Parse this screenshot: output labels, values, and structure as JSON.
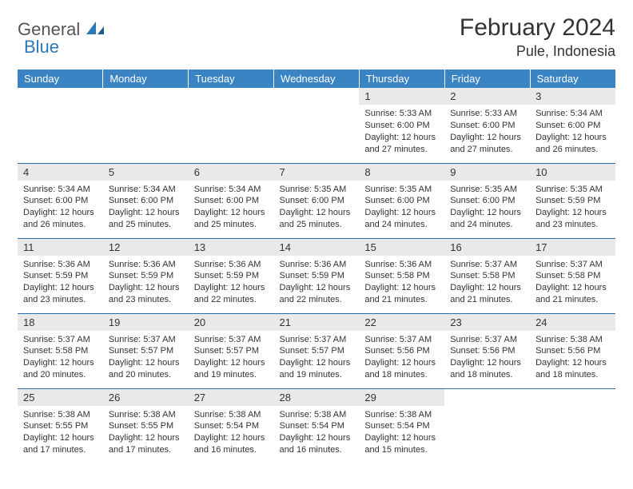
{
  "logo": {
    "part1": "General",
    "part2": "Blue"
  },
  "title": "February 2024",
  "location": "Pule, Indonesia",
  "colors": {
    "header_bg": "#3b84c4",
    "header_text": "#ffffff",
    "daynum_bg": "#e9e9e9",
    "row_border": "#2a6da8",
    "logo_gray": "#555555",
    "logo_blue": "#2a7ab9",
    "body_text": "#333333",
    "page_bg": "#ffffff"
  },
  "typography": {
    "title_fontsize": 30,
    "location_fontsize": 18,
    "header_fontsize": 13,
    "daynum_fontsize": 13,
    "cell_fontsize": 11
  },
  "columns": [
    "Sunday",
    "Monday",
    "Tuesday",
    "Wednesday",
    "Thursday",
    "Friday",
    "Saturday"
  ],
  "weeks": [
    [
      null,
      null,
      null,
      null,
      {
        "n": "1",
        "sunrise": "Sunrise: 5:33 AM",
        "sunset": "Sunset: 6:00 PM",
        "daylight": "Daylight: 12 hours and 27 minutes."
      },
      {
        "n": "2",
        "sunrise": "Sunrise: 5:33 AM",
        "sunset": "Sunset: 6:00 PM",
        "daylight": "Daylight: 12 hours and 27 minutes."
      },
      {
        "n": "3",
        "sunrise": "Sunrise: 5:34 AM",
        "sunset": "Sunset: 6:00 PM",
        "daylight": "Daylight: 12 hours and 26 minutes."
      }
    ],
    [
      {
        "n": "4",
        "sunrise": "Sunrise: 5:34 AM",
        "sunset": "Sunset: 6:00 PM",
        "daylight": "Daylight: 12 hours and 26 minutes."
      },
      {
        "n": "5",
        "sunrise": "Sunrise: 5:34 AM",
        "sunset": "Sunset: 6:00 PM",
        "daylight": "Daylight: 12 hours and 25 minutes."
      },
      {
        "n": "6",
        "sunrise": "Sunrise: 5:34 AM",
        "sunset": "Sunset: 6:00 PM",
        "daylight": "Daylight: 12 hours and 25 minutes."
      },
      {
        "n": "7",
        "sunrise": "Sunrise: 5:35 AM",
        "sunset": "Sunset: 6:00 PM",
        "daylight": "Daylight: 12 hours and 25 minutes."
      },
      {
        "n": "8",
        "sunrise": "Sunrise: 5:35 AM",
        "sunset": "Sunset: 6:00 PM",
        "daylight": "Daylight: 12 hours and 24 minutes."
      },
      {
        "n": "9",
        "sunrise": "Sunrise: 5:35 AM",
        "sunset": "Sunset: 6:00 PM",
        "daylight": "Daylight: 12 hours and 24 minutes."
      },
      {
        "n": "10",
        "sunrise": "Sunrise: 5:35 AM",
        "sunset": "Sunset: 5:59 PM",
        "daylight": "Daylight: 12 hours and 23 minutes."
      }
    ],
    [
      {
        "n": "11",
        "sunrise": "Sunrise: 5:36 AM",
        "sunset": "Sunset: 5:59 PM",
        "daylight": "Daylight: 12 hours and 23 minutes."
      },
      {
        "n": "12",
        "sunrise": "Sunrise: 5:36 AM",
        "sunset": "Sunset: 5:59 PM",
        "daylight": "Daylight: 12 hours and 23 minutes."
      },
      {
        "n": "13",
        "sunrise": "Sunrise: 5:36 AM",
        "sunset": "Sunset: 5:59 PM",
        "daylight": "Daylight: 12 hours and 22 minutes."
      },
      {
        "n": "14",
        "sunrise": "Sunrise: 5:36 AM",
        "sunset": "Sunset: 5:59 PM",
        "daylight": "Daylight: 12 hours and 22 minutes."
      },
      {
        "n": "15",
        "sunrise": "Sunrise: 5:36 AM",
        "sunset": "Sunset: 5:58 PM",
        "daylight": "Daylight: 12 hours and 21 minutes."
      },
      {
        "n": "16",
        "sunrise": "Sunrise: 5:37 AM",
        "sunset": "Sunset: 5:58 PM",
        "daylight": "Daylight: 12 hours and 21 minutes."
      },
      {
        "n": "17",
        "sunrise": "Sunrise: 5:37 AM",
        "sunset": "Sunset: 5:58 PM",
        "daylight": "Daylight: 12 hours and 21 minutes."
      }
    ],
    [
      {
        "n": "18",
        "sunrise": "Sunrise: 5:37 AM",
        "sunset": "Sunset: 5:58 PM",
        "daylight": "Daylight: 12 hours and 20 minutes."
      },
      {
        "n": "19",
        "sunrise": "Sunrise: 5:37 AM",
        "sunset": "Sunset: 5:57 PM",
        "daylight": "Daylight: 12 hours and 20 minutes."
      },
      {
        "n": "20",
        "sunrise": "Sunrise: 5:37 AM",
        "sunset": "Sunset: 5:57 PM",
        "daylight": "Daylight: 12 hours and 19 minutes."
      },
      {
        "n": "21",
        "sunrise": "Sunrise: 5:37 AM",
        "sunset": "Sunset: 5:57 PM",
        "daylight": "Daylight: 12 hours and 19 minutes."
      },
      {
        "n": "22",
        "sunrise": "Sunrise: 5:37 AM",
        "sunset": "Sunset: 5:56 PM",
        "daylight": "Daylight: 12 hours and 18 minutes."
      },
      {
        "n": "23",
        "sunrise": "Sunrise: 5:37 AM",
        "sunset": "Sunset: 5:56 PM",
        "daylight": "Daylight: 12 hours and 18 minutes."
      },
      {
        "n": "24",
        "sunrise": "Sunrise: 5:38 AM",
        "sunset": "Sunset: 5:56 PM",
        "daylight": "Daylight: 12 hours and 18 minutes."
      }
    ],
    [
      {
        "n": "25",
        "sunrise": "Sunrise: 5:38 AM",
        "sunset": "Sunset: 5:55 PM",
        "daylight": "Daylight: 12 hours and 17 minutes."
      },
      {
        "n": "26",
        "sunrise": "Sunrise: 5:38 AM",
        "sunset": "Sunset: 5:55 PM",
        "daylight": "Daylight: 12 hours and 17 minutes."
      },
      {
        "n": "27",
        "sunrise": "Sunrise: 5:38 AM",
        "sunset": "Sunset: 5:54 PM",
        "daylight": "Daylight: 12 hours and 16 minutes."
      },
      {
        "n": "28",
        "sunrise": "Sunrise: 5:38 AM",
        "sunset": "Sunset: 5:54 PM",
        "daylight": "Daylight: 12 hours and 16 minutes."
      },
      {
        "n": "29",
        "sunrise": "Sunrise: 5:38 AM",
        "sunset": "Sunset: 5:54 PM",
        "daylight": "Daylight: 12 hours and 15 minutes."
      },
      null,
      null
    ]
  ]
}
